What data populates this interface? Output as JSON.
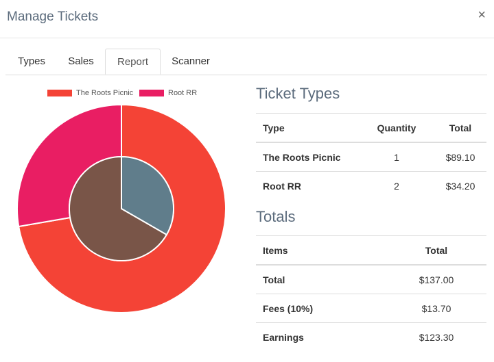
{
  "dialog": {
    "title": "Manage Tickets",
    "close_glyph": "×"
  },
  "tabs": [
    {
      "label": "Types",
      "active": false
    },
    {
      "label": "Sales",
      "active": false
    },
    {
      "label": "Report",
      "active": true
    },
    {
      "label": "Scanner",
      "active": false
    }
  ],
  "chart_data": {
    "type": "pie",
    "legend": [
      {
        "label": "The Roots Picnic",
        "color": "#f44336"
      },
      {
        "label": "Root RR",
        "color": "#e91e63"
      }
    ],
    "outer": [
      {
        "label": "The Roots Picnic",
        "value": 89.1,
        "color": "#f44336"
      },
      {
        "label": "Root RR",
        "value": 34.2,
        "color": "#e91e63"
      }
    ],
    "inner": [
      {
        "label": "The Roots Picnic",
        "value": 1,
        "color": "#607d8b"
      },
      {
        "label": "Root RR",
        "value": 2,
        "color": "#795548"
      }
    ]
  },
  "ticket_types": {
    "heading": "Ticket Types",
    "columns": [
      "Type",
      "Quantity",
      "Total"
    ],
    "rows": [
      {
        "type": "The Roots Picnic",
        "quantity": "1",
        "total": "$89.10"
      },
      {
        "type": "Root RR",
        "quantity": "2",
        "total": "$34.20"
      }
    ]
  },
  "totals": {
    "heading": "Totals",
    "columns": [
      "Items",
      "Total"
    ],
    "rows": [
      {
        "item": "Total",
        "value": "$137.00"
      },
      {
        "item": "Fees (10%)",
        "value": "$13.70"
      },
      {
        "item": "Earnings",
        "value": "$123.30"
      }
    ]
  }
}
